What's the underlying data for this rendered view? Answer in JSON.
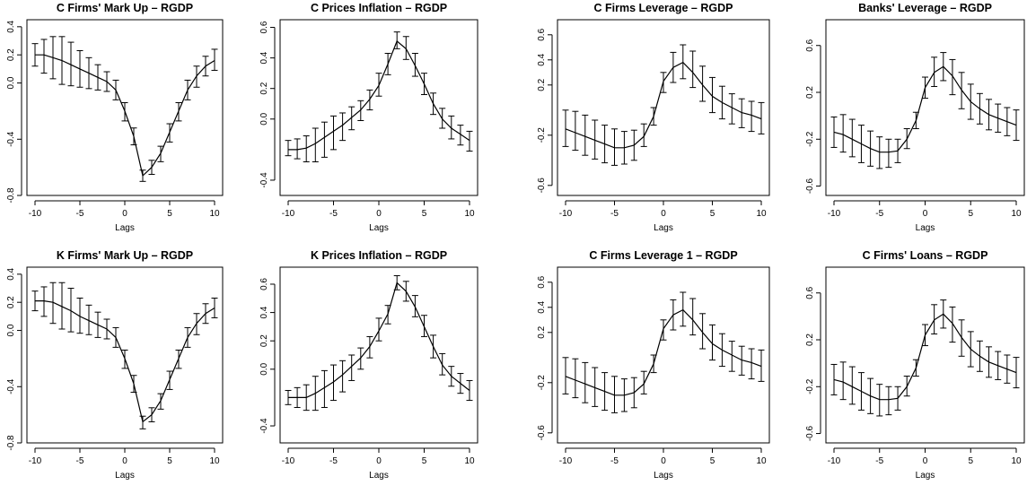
{
  "chart_data": [
    {
      "type": "line",
      "title": "C Firms' Mark Up – RGDP",
      "xlabel": "Lags",
      "ylabel": "",
      "xlim": [
        -10,
        10
      ],
      "ylim": [
        -0.8,
        0.45
      ],
      "xticks": [
        -10,
        -5,
        0,
        5,
        10
      ],
      "yticks": [
        -0.8,
        -0.4,
        0.0,
        0.2,
        0.4
      ],
      "ytick_labels": [
        "-0.8",
        "-0.4",
        "0.0",
        "0.2",
        "0.4"
      ],
      "x": [
        -10,
        -9,
        -8,
        -7,
        -6,
        -5,
        -4,
        -3,
        -2,
        -1,
        0,
        1,
        2,
        3,
        4,
        5,
        6,
        7,
        8,
        9,
        10
      ],
      "values": [
        0.2,
        0.2,
        0.18,
        0.16,
        0.13,
        0.1,
        0.07,
        0.04,
        0.01,
        -0.05,
        -0.2,
        -0.38,
        -0.66,
        -0.6,
        -0.5,
        -0.35,
        -0.2,
        -0.05,
        0.05,
        0.12,
        0.16
      ],
      "lower": [
        0.12,
        0.07,
        0.03,
        -0.01,
        -0.02,
        -0.03,
        -0.04,
        -0.05,
        -0.06,
        -0.12,
        -0.27,
        -0.44,
        -0.7,
        -0.65,
        -0.56,
        -0.42,
        -0.27,
        -0.12,
        -0.03,
        0.05,
        0.09
      ],
      "upper": [
        0.28,
        0.31,
        0.33,
        0.33,
        0.29,
        0.23,
        0.18,
        0.13,
        0.08,
        0.02,
        -0.14,
        -0.32,
        -0.62,
        -0.55,
        -0.45,
        -0.29,
        -0.14,
        0.02,
        0.12,
        0.19,
        0.24
      ]
    },
    {
      "type": "line",
      "title": "C Prices Inflation – RGDP",
      "xlabel": "Lags",
      "ylabel": "",
      "xlim": [
        -10,
        10
      ],
      "ylim": [
        -0.5,
        0.65
      ],
      "xticks": [
        -10,
        -5,
        0,
        5,
        10
      ],
      "yticks": [
        -0.4,
        0.0,
        0.2,
        0.4,
        0.6
      ],
      "ytick_labels": [
        "-0.4",
        "0.0",
        "0.2",
        "0.4",
        "0.6"
      ],
      "x": [
        -10,
        -9,
        -8,
        -7,
        -6,
        -5,
        -4,
        -3,
        -2,
        -1,
        0,
        1,
        2,
        3,
        4,
        5,
        6,
        7,
        8,
        9,
        10
      ],
      "values": [
        -0.2,
        -0.2,
        -0.19,
        -0.16,
        -0.12,
        -0.08,
        -0.04,
        0.01,
        0.06,
        0.13,
        0.22,
        0.36,
        0.51,
        0.46,
        0.35,
        0.23,
        0.1,
        0.0,
        -0.06,
        -0.1,
        -0.14
      ],
      "lower": [
        -0.24,
        -0.26,
        -0.28,
        -0.28,
        -0.25,
        -0.2,
        -0.14,
        -0.07,
        -0.01,
        0.06,
        0.15,
        0.29,
        0.46,
        0.39,
        0.28,
        0.16,
        0.03,
        -0.06,
        -0.13,
        -0.17,
        -0.21
      ],
      "upper": [
        -0.14,
        -0.13,
        -0.11,
        -0.06,
        -0.02,
        0.02,
        0.04,
        0.08,
        0.12,
        0.19,
        0.3,
        0.43,
        0.57,
        0.54,
        0.43,
        0.3,
        0.17,
        0.07,
        0.02,
        -0.04,
        -0.08
      ]
    },
    {
      "type": "line",
      "title": "C Firms Leverage – RGDP",
      "xlabel": "Lags",
      "ylabel": "",
      "xlim": [
        -10,
        10
      ],
      "ylim": [
        -0.68,
        0.72
      ],
      "xticks": [
        -10,
        -5,
        0,
        5,
        10
      ],
      "yticks": [
        -0.6,
        -0.2,
        0.2,
        0.4,
        0.6
      ],
      "ytick_labels": [
        "-0.6",
        "-0.2",
        "0.2",
        "0.4",
        "0.6"
      ],
      "x": [
        -10,
        -9,
        -8,
        -7,
        -6,
        -5,
        -4,
        -3,
        -2,
        -1,
        0,
        1,
        2,
        3,
        4,
        5,
        6,
        7,
        8,
        9,
        10
      ],
      "values": [
        -0.15,
        -0.18,
        -0.21,
        -0.24,
        -0.27,
        -0.3,
        -0.3,
        -0.28,
        -0.21,
        -0.05,
        0.23,
        0.34,
        0.38,
        0.3,
        0.2,
        0.11,
        0.06,
        0.02,
        -0.02,
        -0.04,
        -0.07
      ],
      "lower": [
        -0.29,
        -0.32,
        -0.36,
        -0.39,
        -0.42,
        -0.44,
        -0.43,
        -0.4,
        -0.29,
        -0.12,
        0.14,
        0.22,
        0.25,
        0.18,
        0.07,
        -0.02,
        -0.07,
        -0.11,
        -0.14,
        -0.17,
        -0.19
      ],
      "upper": [
        0.0,
        -0.01,
        -0.04,
        -0.08,
        -0.12,
        -0.15,
        -0.17,
        -0.16,
        -0.11,
        0.02,
        0.3,
        0.46,
        0.52,
        0.47,
        0.35,
        0.26,
        0.19,
        0.13,
        0.09,
        0.07,
        0.06
      ]
    },
    {
      "type": "line",
      "title": "Banks' Leverage – RGDP",
      "xlabel": "Lags",
      "ylabel": "",
      "xlim": [
        -10,
        10
      ],
      "ylim": [
        -0.68,
        0.82
      ],
      "xticks": [
        -10,
        -5,
        0,
        5,
        10
      ],
      "yticks": [
        -0.6,
        -0.2,
        0.2,
        0.6
      ],
      "ytick_labels": [
        "-0.6",
        "-0.2",
        "0.2",
        "0.6"
      ],
      "x": [
        -10,
        -9,
        -8,
        -7,
        -6,
        -5,
        -4,
        -3,
        -2,
        -1,
        0,
        1,
        2,
        3,
        4,
        5,
        6,
        7,
        8,
        9,
        10
      ],
      "values": [
        -0.14,
        -0.16,
        -0.2,
        -0.24,
        -0.28,
        -0.31,
        -0.31,
        -0.3,
        -0.2,
        -0.04,
        0.24,
        0.37,
        0.42,
        0.34,
        0.22,
        0.12,
        0.06,
        0.01,
        -0.02,
        -0.05,
        -0.08
      ],
      "lower": [
        -0.27,
        -0.31,
        -0.35,
        -0.4,
        -0.43,
        -0.45,
        -0.44,
        -0.4,
        -0.28,
        -0.11,
        0.15,
        0.25,
        0.3,
        0.18,
        0.06,
        -0.03,
        -0.07,
        -0.12,
        -0.14,
        -0.17,
        -0.21
      ],
      "upper": [
        -0.01,
        0.01,
        -0.03,
        -0.08,
        -0.13,
        -0.18,
        -0.2,
        -0.2,
        -0.11,
        0.03,
        0.33,
        0.5,
        0.54,
        0.48,
        0.37,
        0.27,
        0.19,
        0.14,
        0.1,
        0.07,
        0.05
      ]
    },
    {
      "type": "line",
      "title": "K Firms' Mark Up – RGDP",
      "xlabel": "Lags",
      "ylabel": "",
      "xlim": [
        -10,
        10
      ],
      "ylim": [
        -0.8,
        0.45
      ],
      "xticks": [
        -10,
        -5,
        0,
        5,
        10
      ],
      "yticks": [
        -0.8,
        -0.4,
        0.0,
        0.2,
        0.4
      ],
      "ytick_labels": [
        "-0.8",
        "-0.4",
        "0.0",
        "0.2",
        "0.4"
      ],
      "x": [
        -10,
        -9,
        -8,
        -7,
        -6,
        -5,
        -4,
        -3,
        -2,
        -1,
        0,
        1,
        2,
        3,
        4,
        5,
        6,
        7,
        8,
        9,
        10
      ],
      "values": [
        0.21,
        0.21,
        0.2,
        0.17,
        0.14,
        0.1,
        0.07,
        0.04,
        0.01,
        -0.05,
        -0.2,
        -0.38,
        -0.65,
        -0.6,
        -0.5,
        -0.35,
        -0.2,
        -0.05,
        0.05,
        0.12,
        0.16
      ],
      "lower": [
        0.14,
        0.1,
        0.05,
        0.01,
        -0.01,
        -0.02,
        -0.03,
        -0.05,
        -0.06,
        -0.12,
        -0.27,
        -0.44,
        -0.7,
        -0.65,
        -0.56,
        -0.42,
        -0.27,
        -0.12,
        -0.03,
        0.05,
        0.09
      ],
      "upper": [
        0.28,
        0.31,
        0.34,
        0.34,
        0.3,
        0.23,
        0.18,
        0.13,
        0.08,
        0.02,
        -0.14,
        -0.32,
        -0.61,
        -0.55,
        -0.45,
        -0.29,
        -0.14,
        0.02,
        0.12,
        0.19,
        0.23
      ]
    },
    {
      "type": "line",
      "title": "K Prices Inflation – RGDP",
      "xlabel": "Lags",
      "ylabel": "",
      "xlim": [
        -10,
        10
      ],
      "ylim": [
        -0.52,
        0.72
      ],
      "xticks": [
        -10,
        -5,
        0,
        5,
        10
      ],
      "yticks": [
        -0.4,
        0.0,
        0.2,
        0.4,
        0.6
      ],
      "ytick_labels": [
        "-0.4",
        "0.0",
        "0.2",
        "0.4",
        "0.6"
      ],
      "x": [
        -10,
        -9,
        -8,
        -7,
        -6,
        -5,
        -4,
        -3,
        -2,
        -1,
        0,
        1,
        2,
        3,
        4,
        5,
        6,
        7,
        8,
        9,
        10
      ],
      "values": [
        -0.2,
        -0.2,
        -0.2,
        -0.17,
        -0.13,
        -0.09,
        -0.04,
        0.02,
        0.08,
        0.16,
        0.27,
        0.39,
        0.61,
        0.55,
        0.44,
        0.3,
        0.16,
        0.03,
        -0.05,
        -0.1,
        -0.15
      ],
      "lower": [
        -0.25,
        -0.27,
        -0.29,
        -0.29,
        -0.27,
        -0.22,
        -0.16,
        -0.08,
        0.0,
        0.08,
        0.2,
        0.32,
        0.56,
        0.48,
        0.37,
        0.23,
        0.08,
        -0.04,
        -0.12,
        -0.17,
        -0.22
      ],
      "upper": [
        -0.15,
        -0.13,
        -0.11,
        -0.05,
        -0.01,
        0.03,
        0.06,
        0.1,
        0.15,
        0.23,
        0.36,
        0.45,
        0.66,
        0.62,
        0.52,
        0.38,
        0.24,
        0.11,
        0.02,
        -0.03,
        -0.08
      ]
    },
    {
      "type": "line",
      "title": "C Firms Leverage 1 – RGDP",
      "xlabel": "Lags",
      "ylabel": "",
      "xlim": [
        -10,
        10
      ],
      "ylim": [
        -0.68,
        0.72
      ],
      "xticks": [
        -10,
        -5,
        0,
        5,
        10
      ],
      "yticks": [
        -0.6,
        -0.2,
        0.2,
        0.4,
        0.6
      ],
      "ytick_labels": [
        "-0.6",
        "-0.2",
        "0.2",
        "0.4",
        "0.6"
      ],
      "x": [
        -10,
        -9,
        -8,
        -7,
        -6,
        -5,
        -4,
        -3,
        -2,
        -1,
        0,
        1,
        2,
        3,
        4,
        5,
        6,
        7,
        8,
        9,
        10
      ],
      "values": [
        -0.15,
        -0.18,
        -0.21,
        -0.24,
        -0.27,
        -0.3,
        -0.3,
        -0.28,
        -0.21,
        -0.05,
        0.23,
        0.34,
        0.38,
        0.3,
        0.2,
        0.11,
        0.06,
        0.02,
        -0.02,
        -0.04,
        -0.07
      ],
      "lower": [
        -0.29,
        -0.32,
        -0.36,
        -0.39,
        -0.42,
        -0.44,
        -0.43,
        -0.4,
        -0.29,
        -0.12,
        0.14,
        0.22,
        0.25,
        0.18,
        0.07,
        -0.02,
        -0.07,
        -0.11,
        -0.14,
        -0.17,
        -0.19
      ],
      "upper": [
        0.0,
        -0.01,
        -0.04,
        -0.08,
        -0.12,
        -0.15,
        -0.17,
        -0.16,
        -0.11,
        0.02,
        0.3,
        0.46,
        0.52,
        0.47,
        0.35,
        0.26,
        0.19,
        0.13,
        0.09,
        0.07,
        0.06
      ]
    },
    {
      "type": "line",
      "title": "C Firms' Loans – RGDP",
      "xlabel": "Lags",
      "ylabel": "",
      "xlim": [
        -10,
        10
      ],
      "ylim": [
        -0.68,
        0.82
      ],
      "xticks": [
        -10,
        -5,
        0,
        5,
        10
      ],
      "yticks": [
        -0.6,
        -0.2,
        0.2,
        0.6
      ],
      "ytick_labels": [
        "-0.6",
        "-0.2",
        "0.2",
        "0.6"
      ],
      "x": [
        -10,
        -9,
        -8,
        -7,
        -6,
        -5,
        -4,
        -3,
        -2,
        -1,
        0,
        1,
        2,
        3,
        4,
        5,
        6,
        7,
        8,
        9,
        10
      ],
      "values": [
        -0.14,
        -0.16,
        -0.2,
        -0.24,
        -0.28,
        -0.31,
        -0.31,
        -0.3,
        -0.2,
        -0.04,
        0.24,
        0.37,
        0.42,
        0.34,
        0.22,
        0.12,
        0.06,
        0.01,
        -0.02,
        -0.05,
        -0.08
      ],
      "lower": [
        -0.27,
        -0.31,
        -0.35,
        -0.4,
        -0.43,
        -0.45,
        -0.44,
        -0.4,
        -0.28,
        -0.11,
        0.15,
        0.25,
        0.3,
        0.18,
        0.06,
        -0.03,
        -0.07,
        -0.12,
        -0.14,
        -0.17,
        -0.21
      ],
      "upper": [
        -0.01,
        0.01,
        -0.03,
        -0.08,
        -0.13,
        -0.18,
        -0.2,
        -0.2,
        -0.11,
        0.03,
        0.33,
        0.5,
        0.54,
        0.48,
        0.37,
        0.27,
        0.19,
        0.14,
        0.1,
        0.07,
        0.05
      ]
    }
  ]
}
